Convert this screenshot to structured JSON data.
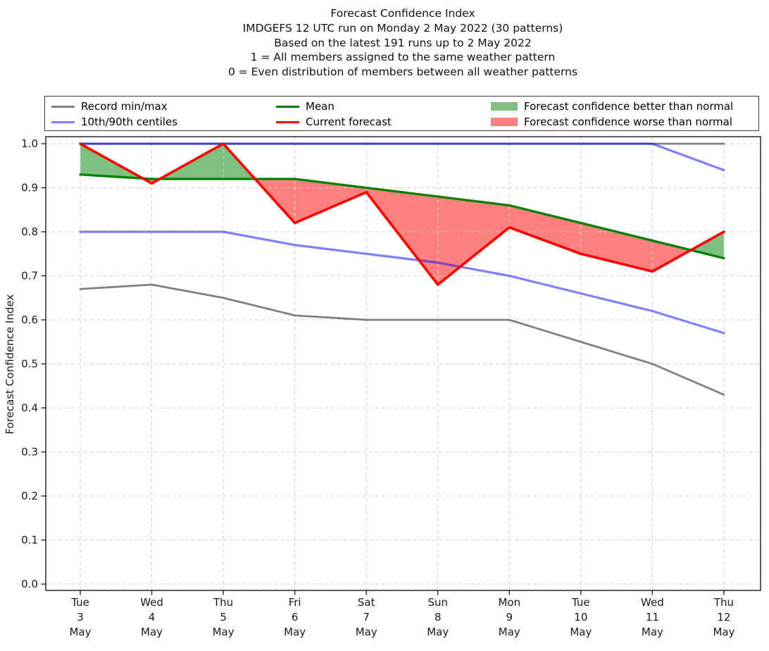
{
  "title": {
    "lines": [
      "Forecast Confidence Index",
      "IMDGEFS 12 UTC run on Monday 2 May 2022 (30 patterns)",
      "Based on the latest 191 runs up to 2 May 2022",
      "1 = All members assigned to the same weather pattern",
      "0 = Even distribution of members between all weather patterns"
    ]
  },
  "legend": {
    "items": [
      {
        "label": "Record min/max",
        "swatch": "line",
        "color": "#808080"
      },
      {
        "label": "10th/90th centiles",
        "swatch": "line",
        "color": "#8080ff"
      },
      {
        "label": "Mean",
        "swatch": "line",
        "color": "#008000"
      },
      {
        "label": "Current forecast",
        "swatch": "line",
        "color": "#ff0000"
      },
      {
        "label": "Forecast confidence better than normal",
        "swatch": "patch",
        "color": "#80c080"
      },
      {
        "label": "Forecast confidence worse than normal",
        "swatch": "patch",
        "color": "#ff8080"
      }
    ]
  },
  "chart_data": {
    "type": "line",
    "title": "Forecast Confidence Index",
    "xlabel": "",
    "ylabel": "Forecast Confidence Index",
    "ylim": [
      0.0,
      1.0
    ],
    "yticks": [
      0.0,
      0.1,
      0.2,
      0.3,
      0.4,
      0.5,
      0.6,
      0.7,
      0.8,
      0.9,
      1.0
    ],
    "grid": true,
    "legend_position": "top",
    "categories": [
      {
        "dow": "Tue",
        "day": "3",
        "month": "May"
      },
      {
        "dow": "Wed",
        "day": "4",
        "month": "May"
      },
      {
        "dow": "Thu",
        "day": "5",
        "month": "May"
      },
      {
        "dow": "Fri",
        "day": "6",
        "month": "May"
      },
      {
        "dow": "Sat",
        "day": "7",
        "month": "May"
      },
      {
        "dow": "Sun",
        "day": "8",
        "month": "May"
      },
      {
        "dow": "Mon",
        "day": "9",
        "month": "May"
      },
      {
        "dow": "Tue",
        "day": "10",
        "month": "May"
      },
      {
        "dow": "Wed",
        "day": "11",
        "month": "May"
      },
      {
        "dow": "Thu",
        "day": "12",
        "month": "May"
      }
    ],
    "series": [
      {
        "name": "Record max",
        "color": "#808080",
        "width": 2.8,
        "values": [
          1.0,
          1.0,
          1.0,
          1.0,
          1.0,
          1.0,
          1.0,
          1.0,
          1.0,
          1.0
        ]
      },
      {
        "name": "Record min",
        "color": "#808080",
        "width": 2.8,
        "values": [
          0.67,
          0.68,
          0.65,
          0.61,
          0.6,
          0.6,
          0.6,
          0.55,
          0.5,
          0.43
        ]
      },
      {
        "name": "10th centile",
        "color": "rgba(0,0,255,0.5)",
        "width": 3.2,
        "values": [
          0.8,
          0.8,
          0.8,
          0.77,
          0.75,
          0.73,
          0.7,
          0.66,
          0.62,
          0.57
        ]
      },
      {
        "name": "90th centile",
        "color": "rgba(0,0,255,0.5)",
        "width": 3.2,
        "values": [
          1.0,
          1.0,
          1.0,
          1.0,
          1.0,
          1.0,
          1.0,
          1.0,
          1.0,
          0.94
        ]
      },
      {
        "name": "Mean",
        "color": "#008000",
        "width": 3.3,
        "values": [
          0.93,
          0.92,
          0.92,
          0.92,
          0.9,
          0.88,
          0.86,
          0.82,
          0.78,
          0.74
        ]
      },
      {
        "name": "Current forecast",
        "color": "#ff0000",
        "width": 3.6,
        "values": [
          1.0,
          0.91,
          1.0,
          0.82,
          0.89,
          0.68,
          0.81,
          0.75,
          0.71,
          0.8
        ]
      }
    ],
    "fills": {
      "between": [
        "Current forecast",
        "Mean"
      ],
      "better_color": "rgba(0,128,0,0.5)",
      "worse_color": "rgba(255,0,0,0.5)"
    },
    "grid_color": "#d2d2d2",
    "axis_color": "#1a1a1a"
  }
}
